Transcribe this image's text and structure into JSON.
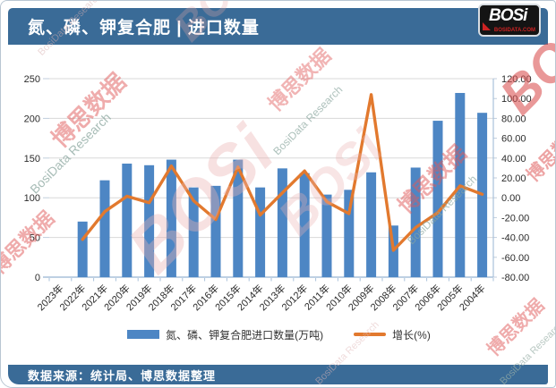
{
  "header": {
    "title": "氮、磷、钾复合肥 | 进口数量",
    "logo": {
      "text": "BOSi",
      "subtext": "BOSIDATA.COM"
    }
  },
  "watermarks": {
    "cn": "博思数据",
    "en": "BosiData Research",
    "logo": "BOSi"
  },
  "footer": {
    "source": "数据来源：统计局、博思数据整理"
  },
  "chart_data": {
    "type": "bar+line",
    "title": "氮、磷、钾复合肥 | 进口数量",
    "categories": [
      "2023年",
      "2022年",
      "2021年",
      "2020年",
      "2019年",
      "2018年",
      "2017年",
      "2016年",
      "2015年",
      "2014年",
      "2013年",
      "2012年",
      "2011年",
      "2010年",
      "2009年",
      "2008年",
      "2007年",
      "2006年",
      "2005年",
      "2004年"
    ],
    "series": [
      {
        "name": "氮、磷、钾复合肥进口数量(万吨)",
        "type": "bar",
        "axis": "left",
        "color": "#4D86C4",
        "values": [
          null,
          70,
          122,
          143,
          141,
          148,
          113,
          115,
          148,
          113,
          137,
          131,
          104,
          110,
          132,
          65,
          138,
          197,
          232,
          207
        ]
      },
      {
        "name": "增长(%)",
        "type": "line",
        "axis": "right",
        "color": "#E2792E",
        "values": [
          null,
          -42,
          -14,
          1.5,
          -5,
          32,
          -3,
          -22,
          31,
          -17.5,
          5,
          27,
          -4,
          -16,
          104,
          -53,
          -30,
          -15,
          12,
          3.5
        ]
      }
    ],
    "left_axis": {
      "min": 0,
      "max": 250,
      "step": 50,
      "ticks": [
        "0",
        "50",
        "100",
        "150",
        "200",
        "250"
      ]
    },
    "right_axis": {
      "min": -80,
      "max": 120,
      "step": 20,
      "ticks": [
        "-80.00",
        "-60.00",
        "-40.00",
        "-20.00",
        "0.00",
        "20.00",
        "40.00",
        "60.00",
        "80.00",
        "100.00",
        "120.00"
      ]
    },
    "grid": true,
    "legend_position": "bottom"
  }
}
